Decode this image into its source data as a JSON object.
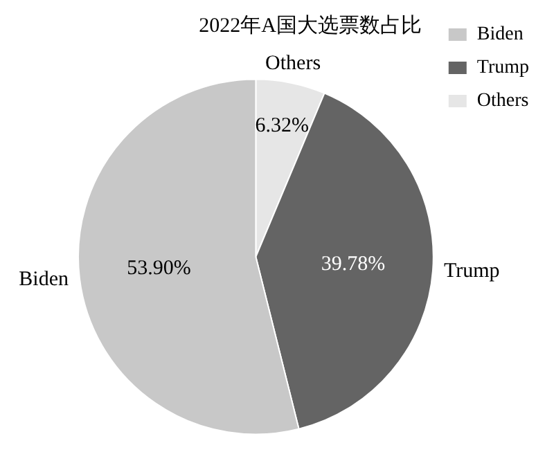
{
  "chart_data": {
    "type": "pie",
    "title": "2022年A国大选票数占比",
    "categories": [
      "Others",
      "Trump",
      "Biden"
    ],
    "values": [
      6.32,
      39.78,
      53.9
    ],
    "value_labels": [
      "6.32%",
      "39.78%",
      "53.90%"
    ],
    "colors": [
      "#e6e6e6",
      "#646464",
      "#c8c8c8"
    ],
    "legend": "top right"
  }
}
